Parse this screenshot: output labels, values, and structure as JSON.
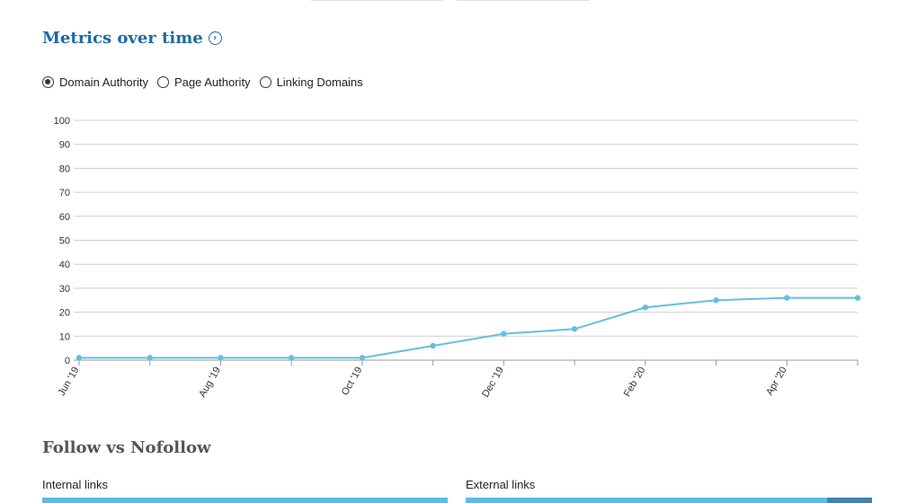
{
  "metrics_section": {
    "title": "Metrics over time",
    "info_icon": "chevron-right-circle-icon",
    "radio_options": [
      {
        "label": "Domain Authority",
        "selected": true
      },
      {
        "label": "Page Authority",
        "selected": false
      },
      {
        "label": "Linking Domains",
        "selected": false
      }
    ]
  },
  "chart_data": {
    "type": "line",
    "title": "",
    "xlabel": "",
    "ylabel": "",
    "ylim": [
      0,
      100
    ],
    "yticks": [
      0,
      10,
      20,
      30,
      40,
      50,
      60,
      70,
      80,
      90,
      100
    ],
    "grid": true,
    "x": [
      "Jun '19",
      "Jul '19",
      "Aug '19",
      "Sep '19",
      "Oct '19",
      "Nov '19",
      "Dec '19",
      "Jan '20",
      "Feb '20",
      "Mar '20",
      "Apr '20",
      "May '20"
    ],
    "x_tick_labels": [
      "Jun '19",
      "",
      "Aug '19",
      "",
      "Oct '19",
      "",
      "Dec '19",
      "",
      "Feb '20",
      "",
      "Apr '20",
      ""
    ],
    "series": [
      {
        "values": [
          1,
          1,
          1,
          1,
          1,
          6,
          11,
          13,
          22,
          25,
          26,
          26
        ],
        "color": "#63bfe0"
      }
    ]
  },
  "follow_section": {
    "title": "Follow vs Nofollow",
    "internal": {
      "label": "Internal links",
      "follow_fraction": 1.0
    },
    "external": {
      "label": "External links",
      "follow_fraction": 0.89
    },
    "colors": {
      "follow": "#5bbde3",
      "nofollow": "#3f83ae"
    }
  }
}
